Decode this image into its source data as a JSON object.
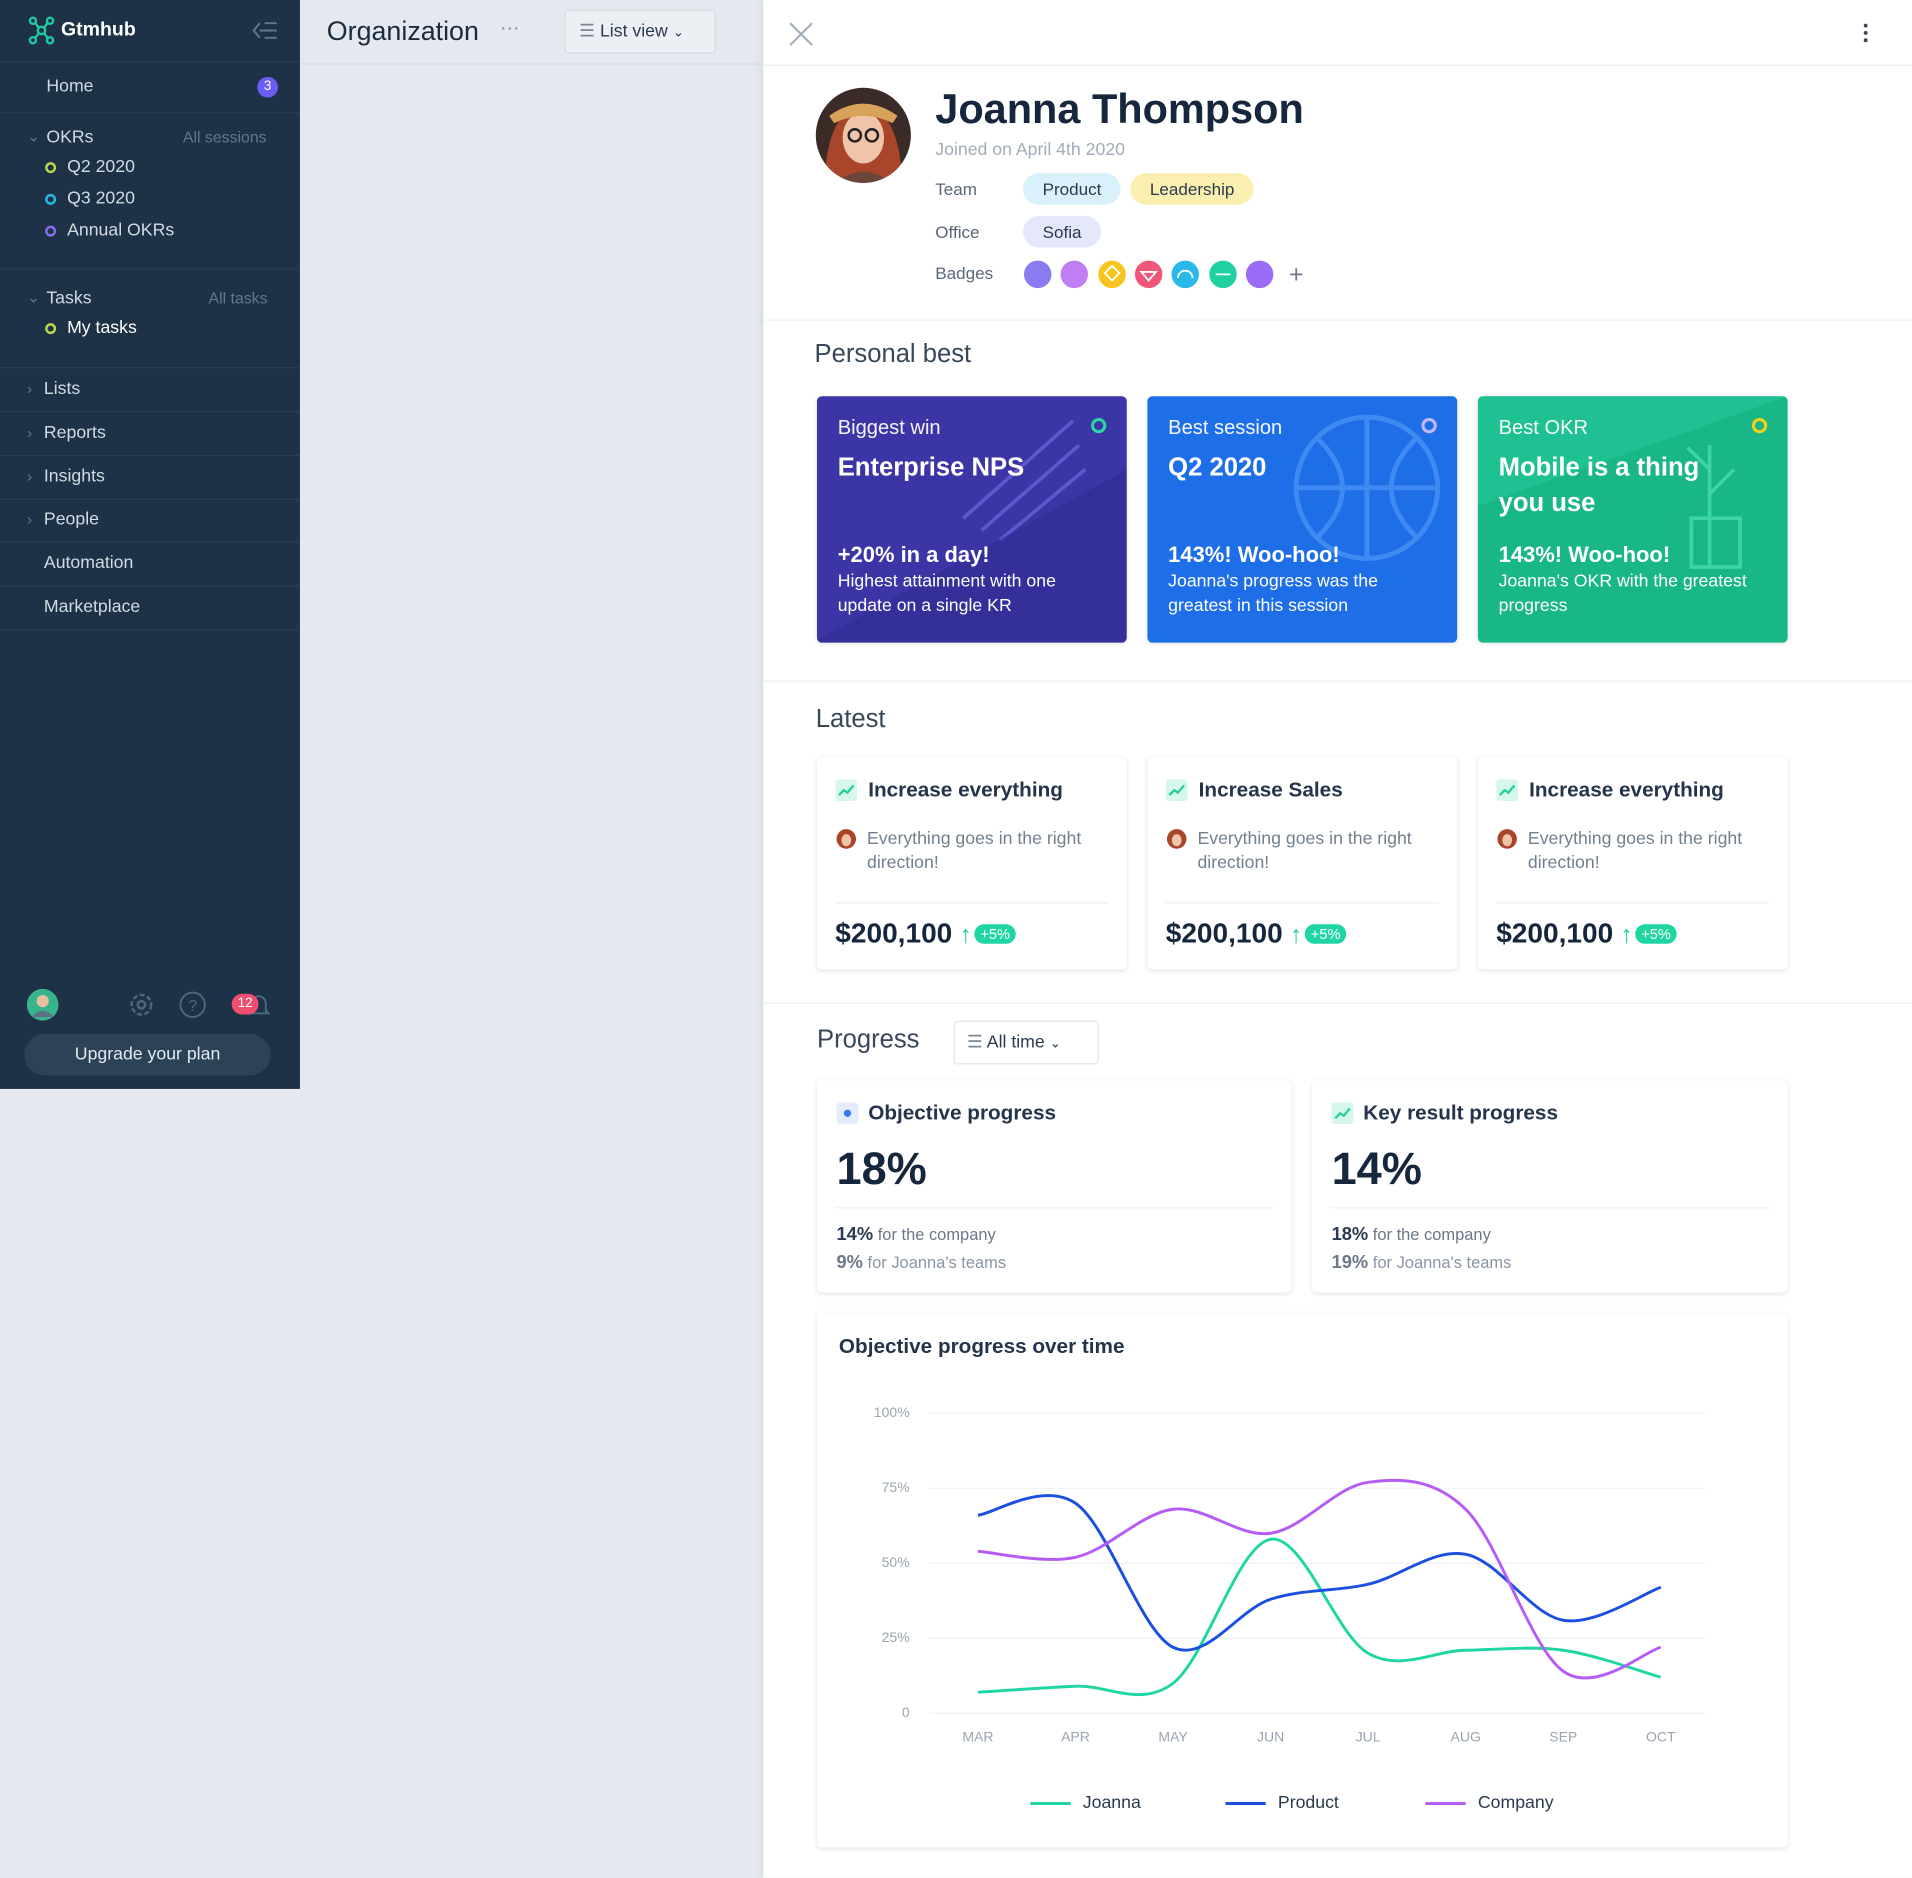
{
  "sidebar": {
    "brand": "Gtmhub",
    "home": "Home",
    "home_badge": "3",
    "okrs": {
      "label": "OKRs",
      "link": "All sessions",
      "items": [
        "Q2 2020",
        "Q3 2020",
        "Annual OKRs"
      ]
    },
    "tasks": {
      "label": "Tasks",
      "link": "All tasks",
      "items": [
        "My tasks"
      ]
    },
    "nav": [
      "Lists",
      "Reports",
      "Insights",
      "People",
      "Automation",
      "Marketplace"
    ],
    "notifications": "12",
    "upgrade": "Upgrade your plan"
  },
  "header": {
    "title": "Organization",
    "view": "List view"
  },
  "profile": {
    "name": "Joanna Thompson",
    "joined": "Joined on April 4th 2020",
    "team_label": "Team",
    "teams": [
      "Product",
      "Leadership"
    ],
    "office_label": "Office",
    "office": "Sofia",
    "badges_label": "Badges"
  },
  "personal_best": {
    "title": "Personal best",
    "cards": [
      {
        "label": "Biggest win",
        "title": "Enterprise NPS",
        "highlight": "+20% in a day!",
        "text": "Highest attainment with one update on a single KR"
      },
      {
        "label": "Best session",
        "title": "Q2 2020",
        "highlight": "143%! Woo-hoo!",
        "text": "Joanna's progress was the greatest in this session"
      },
      {
        "label": "Best OKR",
        "title": "Mobile is a thing you use",
        "highlight": "143%! Woo-hoo!",
        "text": "Joanna's OKR with the greatest progress"
      }
    ]
  },
  "latest": {
    "title": "Latest",
    "cards": [
      {
        "title": "Increase everything",
        "text": "Everything goes in the right direction!",
        "value": "$200,100",
        "change": "+5%"
      },
      {
        "title": "Increase Sales",
        "text": "Everything goes in the right direction!",
        "value": "$200,100",
        "change": "+5%"
      },
      {
        "title": "Increase everything",
        "text": "Everything goes in the right direction!",
        "value": "$200,100",
        "change": "+5%"
      }
    ]
  },
  "progress": {
    "title": "Progress",
    "filter": "All time",
    "cards": [
      {
        "title": "Objective progress",
        "value": "18%",
        "company_value": "14%",
        "company_text": "for the company",
        "teams_value": "9%",
        "teams_text": "for Joanna's teams"
      },
      {
        "title": "Key result progress",
        "value": "14%",
        "company_value": "18%",
        "company_text": "for the company",
        "teams_value": "19%",
        "teams_text": "for Joanna's teams"
      }
    ]
  },
  "chart_data": {
    "type": "line",
    "title": "Objective progress over time",
    "categories": [
      "MAR",
      "APR",
      "MAY",
      "JUN",
      "JUL",
      "AUG",
      "SEP",
      "OCT"
    ],
    "series": [
      {
        "name": "Joanna",
        "color": "#1fd6a2",
        "values": [
          7,
          9,
          10,
          58,
          20,
          21,
          21,
          12
        ]
      },
      {
        "name": "Product",
        "color": "#1a4fe0",
        "values": [
          66,
          70,
          22,
          38,
          43,
          53,
          31,
          42
        ]
      },
      {
        "name": "Company",
        "color": "#b45cf5",
        "values": [
          54,
          52,
          68,
          60,
          77,
          68,
          14,
          22
        ]
      }
    ],
    "ylim": [
      0,
      100
    ],
    "yticks": [
      0,
      {
        "value": 25,
        "label": "25%"
      },
      {
        "value": 50,
        "label": "50%"
      },
      {
        "value": 75,
        "label": "75%"
      },
      {
        "value": 100,
        "label": "100%"
      }
    ],
    "grid": true,
    "legend": "bottom"
  }
}
